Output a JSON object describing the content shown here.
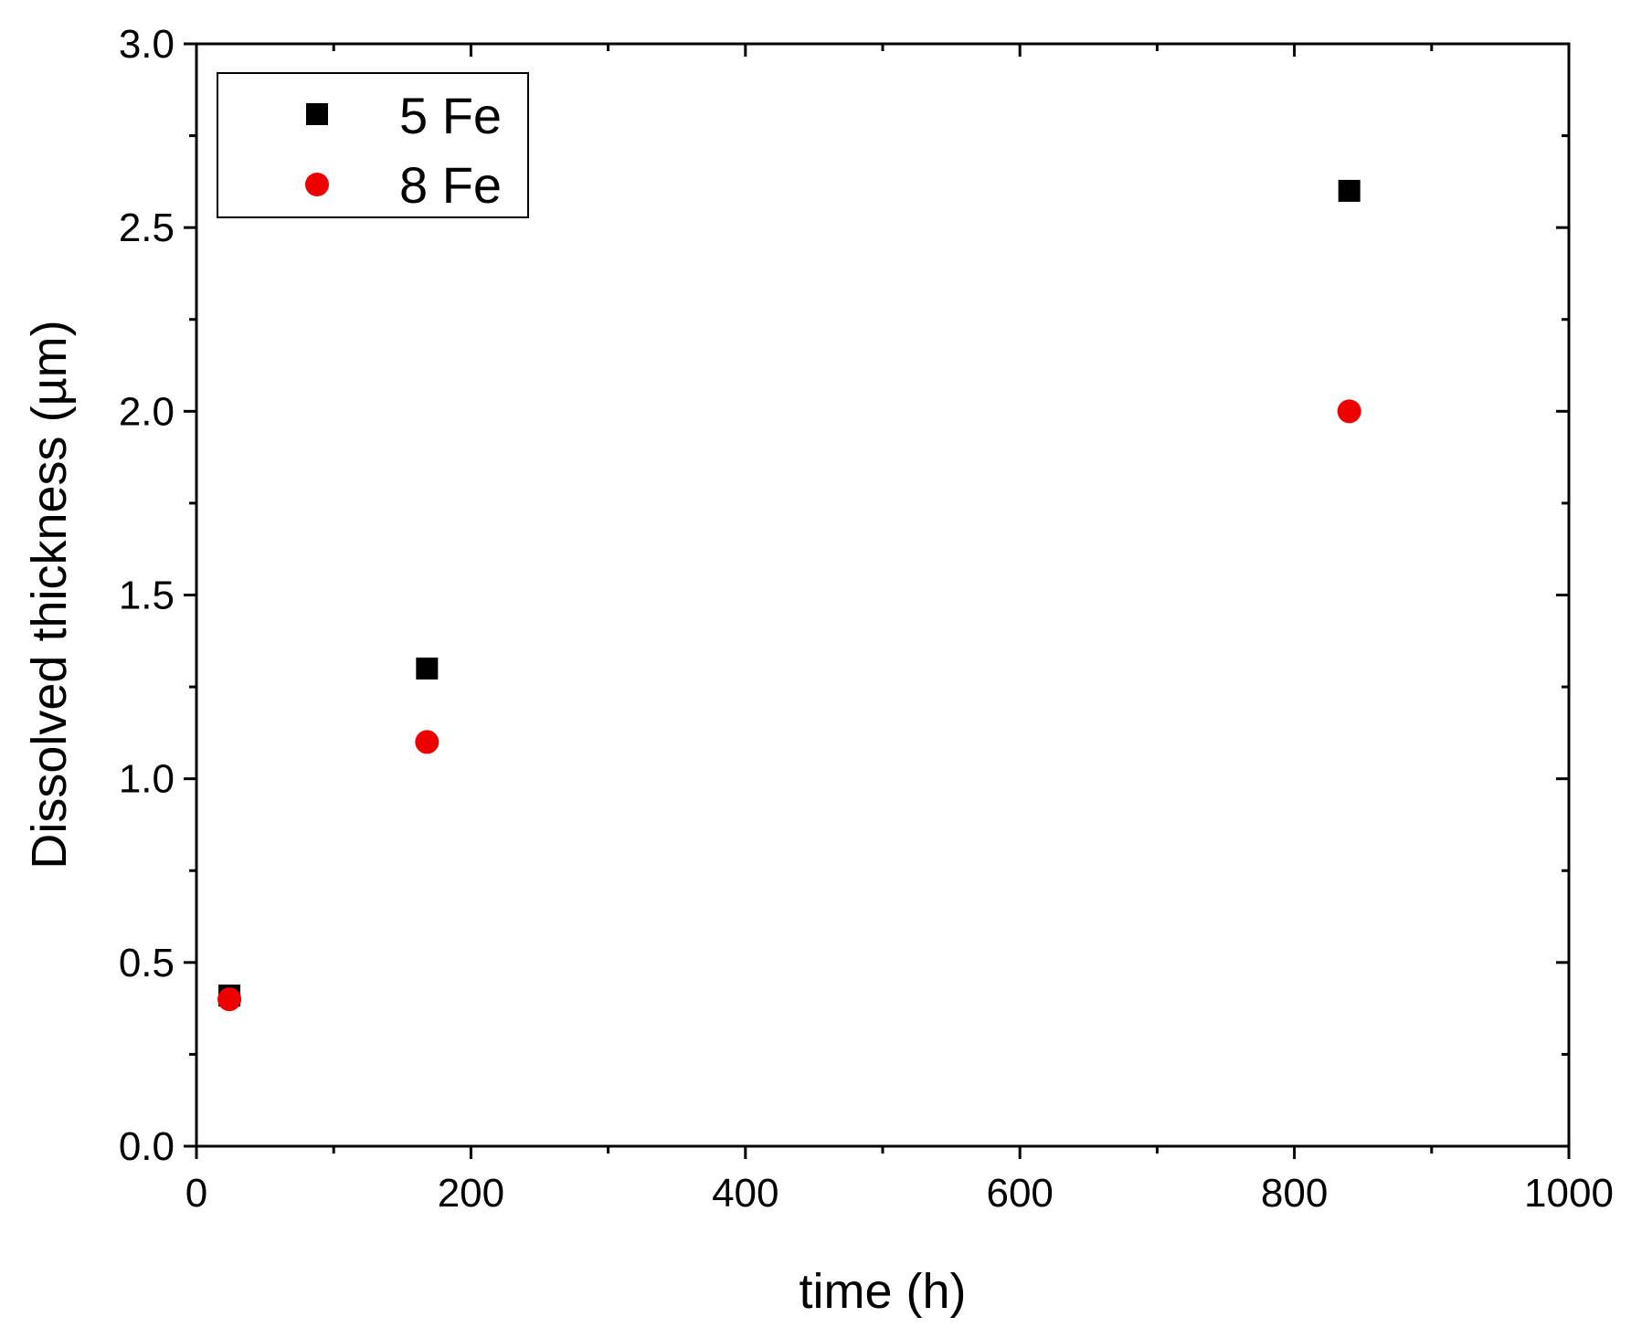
{
  "chart_data": {
    "type": "scatter",
    "title": "",
    "xlabel": "time (h)",
    "ylabel": "Dissolved thickness (µm)",
    "xlim": [
      0,
      1000
    ],
    "ylim": [
      0,
      3.0
    ],
    "x_ticks": [
      "0",
      "200",
      "400",
      "600",
      "800",
      "1000"
    ],
    "y_ticks": [
      "0.0",
      "0.5",
      "1.0",
      "1.5",
      "2.0",
      "2.5",
      "3.0"
    ],
    "grid": false,
    "legend": "top-left",
    "series": [
      {
        "name": "5 Fe",
        "marker": "square",
        "color": "#000000",
        "points": [
          {
            "x": 24,
            "y": 0.41
          },
          {
            "x": 168,
            "y": 1.3
          },
          {
            "x": 840,
            "y": 2.6
          }
        ]
      },
      {
        "name": "8 Fe",
        "marker": "circle",
        "color": "#ee0000",
        "points": [
          {
            "x": 24,
            "y": 0.4
          },
          {
            "x": 168,
            "y": 1.1
          },
          {
            "x": 840,
            "y": 2.0
          }
        ]
      }
    ]
  }
}
